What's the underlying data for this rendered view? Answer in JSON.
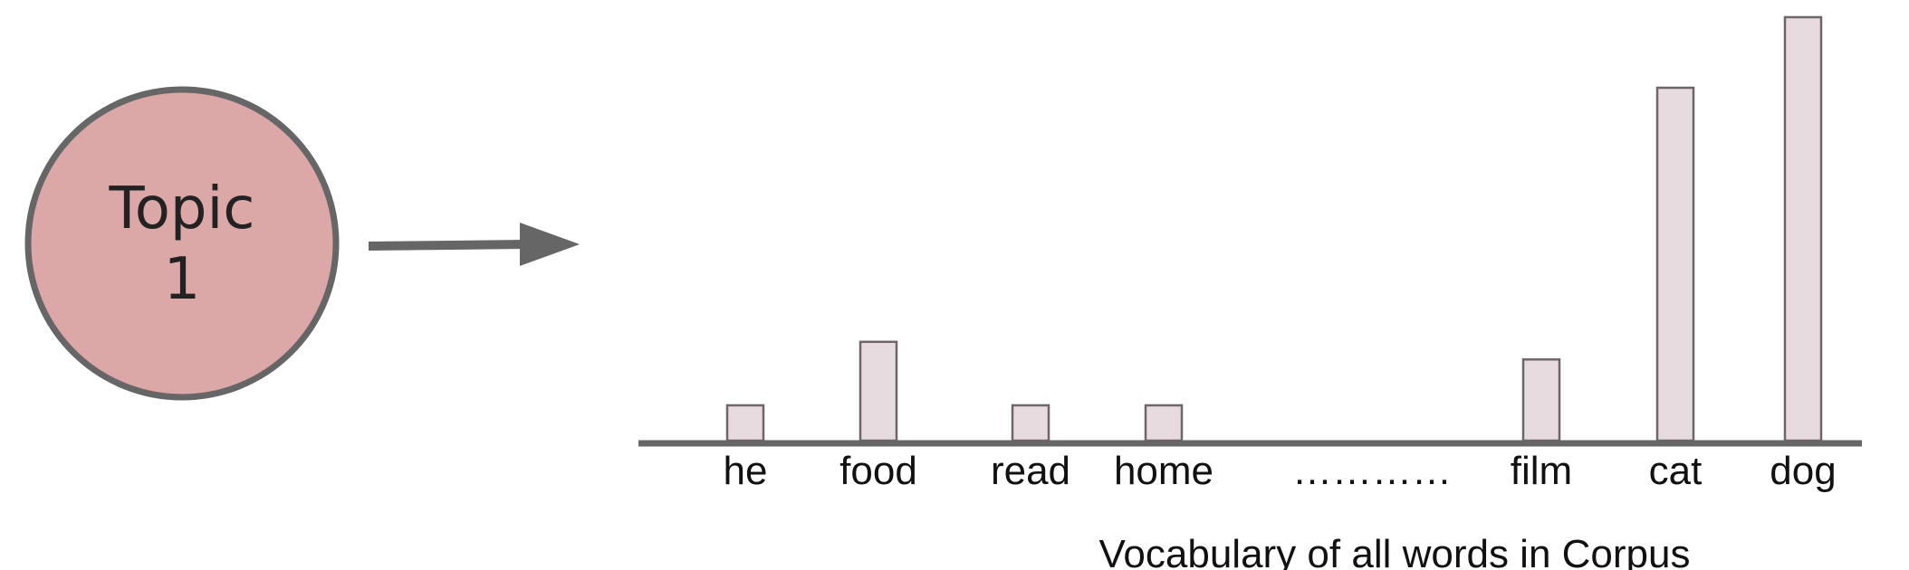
{
  "topic": {
    "line1": "Topic",
    "line2": "1"
  },
  "chart_data": {
    "type": "bar",
    "categories": [
      "he",
      "food",
      "read",
      "home",
      "…………",
      "film",
      "cat",
      "dog"
    ],
    "values": [
      1,
      2.8,
      1,
      1,
      null,
      2.3,
      10,
      12
    ],
    "xlabel": "Vocabulary of all words in Corpus",
    "ylabel": "",
    "title": ""
  },
  "colors": {
    "topic_fill": "#dba7a7",
    "topic_stroke": "#666666",
    "arrow": "#666666",
    "bar_fill": "#e8dbe0",
    "bar_stroke": "#6e6666",
    "axis": "#666666"
  }
}
